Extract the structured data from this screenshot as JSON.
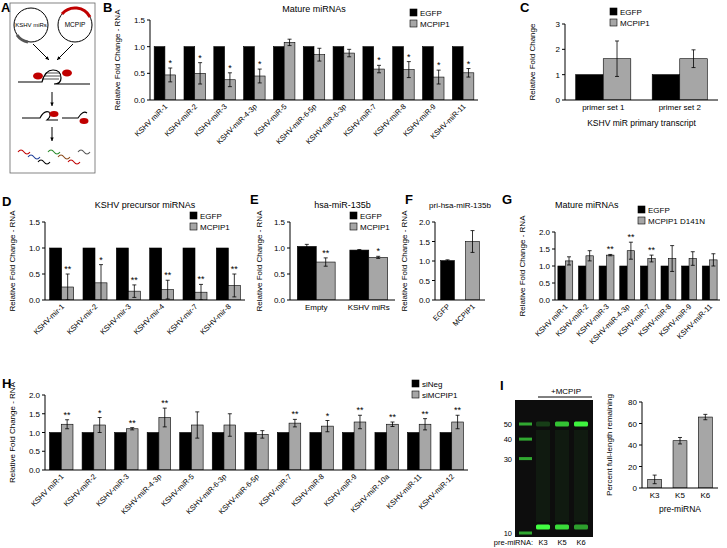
{
  "schematic": {
    "panel": "A",
    "labels": [
      "KSHV miRs",
      "MCPIP"
    ]
  },
  "chart_data": [
    {
      "panel": "B",
      "type": "bar",
      "title": "Mature miRNAs",
      "y_label": "Relative Fold Change - RNA",
      "categories": [
        "KSHV miR-1",
        "KSHV-miR-2",
        "KSHV-miR-3",
        "KSHV-miR-4-3p",
        "KSHV-miR-5",
        "KSHV-miR-6-5p",
        "KSHV-miR-6-3p",
        "KSHV-miR-7",
        "KSHV-miR-8",
        "KSHV-miR-9",
        "KSHV-miR-11"
      ],
      "series": [
        {
          "name": "EGFP",
          "color": "#000000",
          "values": [
            1,
            1,
            1,
            1,
            1,
            1,
            1,
            1,
            1,
            1,
            1
          ]
        },
        {
          "name": "MCPIP1",
          "color": "#a6a6a6",
          "values": [
            0.47,
            0.5,
            0.38,
            0.45,
            1.08,
            0.85,
            0.88,
            0.58,
            0.57,
            0.43,
            0.51
          ],
          "errors": [
            0.13,
            0.2,
            0.13,
            0.13,
            0.06,
            0.12,
            0.07,
            0.07,
            0.15,
            0.13,
            0.08
          ],
          "significance": [
            "*",
            "*",
            "*",
            "*",
            null,
            null,
            null,
            "*",
            "*",
            "*",
            "*"
          ]
        }
      ],
      "ylim": [
        0,
        1.5
      ],
      "yticks": [
        {
          "value": 0,
          "label": "0.0"
        },
        {
          "value": 0.5,
          "label": "0.5"
        },
        {
          "value": 1,
          "label": "1.0"
        },
        {
          "value": 1.5,
          "label": "1.5"
        }
      ],
      "legend": "top-right"
    },
    {
      "panel": "C",
      "type": "bar",
      "y_label": "Relative Fold Change",
      "x_label": "KSHV miR primary transcript",
      "categories": [
        "primer set 1",
        "primer set 2"
      ],
      "series": [
        {
          "name": "EGFP",
          "color": "#000000",
          "values": [
            1,
            1
          ]
        },
        {
          "name": "MCPIP1",
          "color": "#a6a6a6",
          "values": [
            1.63,
            1.63
          ],
          "errors": [
            0.7,
            0.35
          ]
        }
      ],
      "ylim": [
        0,
        3
      ],
      "yticks": [
        0,
        1,
        2,
        3
      ],
      "legend": "top-right"
    },
    {
      "panel": "D",
      "type": "bar",
      "title": "KSHV precursor miRNAs",
      "y_label": "Relative Fold Change - RNA",
      "categories": [
        "KSHV-mir-1",
        "KSHV-mir-2",
        "KSHV-mir-3",
        "KSHV-mir-4",
        "KSHV-mir-7",
        "KSHV-mir-8"
      ],
      "series": [
        {
          "name": "EGFP",
          "color": "#000000",
          "values": [
            1,
            1,
            1,
            1,
            1,
            1
          ]
        },
        {
          "name": "MCPIP1",
          "color": "#a6a6a6",
          "values": [
            0.25,
            0.33,
            0.17,
            0.2,
            0.15,
            0.28
          ],
          "errors": [
            0.25,
            0.35,
            0.12,
            0.18,
            0.15,
            0.22
          ],
          "significance": [
            "**",
            "*",
            "**",
            "**",
            "**",
            "**"
          ]
        }
      ],
      "ylim": [
        0,
        1.5
      ],
      "yticks": [
        {
          "value": 0,
          "label": "0.0"
        },
        {
          "value": 0.5,
          "label": "0.5"
        },
        {
          "value": 1,
          "label": "1.0"
        },
        {
          "value": 1.5,
          "label": "1.5"
        }
      ],
      "legend": "top-right"
    },
    {
      "panel": "E",
      "type": "bar",
      "title": "hsa-miR-135b",
      "y_label": "Relative Fold Change - RNA",
      "categories": [
        "Empty",
        "KSHV miRs"
      ],
      "series": [
        {
          "name": "EGFP",
          "color": "#000000",
          "values": [
            1.03,
            0.96
          ],
          "errors": [
            0.04,
            0.01
          ]
        },
        {
          "name": "MCPIP1",
          "color": "#a6a6a6",
          "values": [
            0.73,
            0.82
          ],
          "errors": [
            0.08,
            0.02
          ],
          "significance": [
            "**",
            "*"
          ]
        }
      ],
      "ylim": [
        0,
        1.5
      ],
      "yticks": [
        {
          "value": 0,
          "label": "0.0"
        },
        {
          "value": 0.5,
          "label": "0.5"
        },
        {
          "value": 1,
          "label": "1.0"
        },
        {
          "value": 1.5,
          "label": "1.5"
        }
      ],
      "legend": "top-right"
    },
    {
      "panel": "F",
      "type": "bar",
      "title": "pri-hsa-miR-135b",
      "y_label": "Relative Fold Change - RNA",
      "categories": [
        "EGFP",
        "MCPIP1"
      ],
      "values": [
        1.01,
        1.5
      ],
      "errors": [
        0.02,
        0.28
      ],
      "colors": [
        "#000000",
        "#a6a6a6"
      ],
      "ylim": [
        0,
        2
      ],
      "yticks": [
        {
          "value": 0,
          "label": "0.0"
        },
        {
          "value": 0.5,
          "label": "0.5"
        },
        {
          "value": 1,
          "label": "1.0"
        },
        {
          "value": 1.5,
          "label": "1.5"
        },
        {
          "value": 2,
          "label": "2.0"
        }
      ]
    },
    {
      "panel": "G",
      "type": "bar",
      "title": "Mature miRNAs",
      "y_label": "Relative Fold Change - RNA",
      "categories": [
        "KSHV miR-1",
        "KSHV-miR-2",
        "KSHV-miR-3",
        "KSHV-miR-4-3p",
        "KSHV-miR-7",
        "KSHV-miR-8",
        "KSHV-miR-9",
        "KSHV-miR-11"
      ],
      "series": [
        {
          "name": "EGFP",
          "color": "#000000",
          "values": [
            1,
            1,
            1,
            1,
            1,
            1,
            1,
            1
          ]
        },
        {
          "name": "MCPIP1 D141N",
          "color": "#a6a6a6",
          "values": [
            1.15,
            1.3,
            1.32,
            1.45,
            1.22,
            1.22,
            1.22,
            1.18
          ],
          "errors": [
            0.12,
            0.15,
            0.02,
            0.25,
            0.1,
            0.38,
            0.2,
            0.18
          ],
          "significance": [
            null,
            null,
            "**",
            "**",
            "**",
            null,
            null,
            null
          ]
        }
      ],
      "ylim": [
        0,
        2
      ],
      "yticks": [
        {
          "value": 0,
          "label": "0.0"
        },
        {
          "value": 0.5,
          "label": "0.5"
        },
        {
          "value": 1,
          "label": "1.0"
        },
        {
          "value": 1.5,
          "label": "1.5"
        },
        {
          "value": 2,
          "label": "2.0"
        }
      ],
      "legend": "top-right"
    },
    {
      "panel": "H",
      "type": "bar",
      "y_label": "Relative Fold Change - RNA",
      "categories": [
        "KSHV miR-1",
        "KSHV-miR-2",
        "KSHV-miR-3",
        "KSHV-miR-4-3p",
        "KSHV-miR-5",
        "KSHV-miR-6-3p",
        "KSHV-miR-6-5p",
        "KSHV-miR-7",
        "KSHV-miR-8",
        "KSHV-miR-9",
        "KSHV-miR-10a",
        "KSHV-miR-11",
        "KSHV-miR-12"
      ],
      "series": [
        {
          "name": "siNeg",
          "color": "#000000",
          "values": [
            1,
            1,
            1,
            1,
            1,
            1,
            1,
            1,
            1,
            1,
            1,
            1,
            1
          ]
        },
        {
          "name": "siMCPIP1",
          "color": "#a6a6a6",
          "values": [
            1.22,
            1.2,
            1.1,
            1.4,
            1.2,
            1.2,
            0.95,
            1.25,
            1.17,
            1.28,
            1.22,
            1.22,
            1.28
          ],
          "errors": [
            0.12,
            0.2,
            0.03,
            0.25,
            0.35,
            0.3,
            0.1,
            0.1,
            0.15,
            0.18,
            0.06,
            0.15,
            0.18
          ],
          "significance": [
            "**",
            "*",
            "**",
            "**",
            null,
            null,
            null,
            "**",
            "*",
            "**",
            "**",
            "**",
            "**"
          ]
        }
      ],
      "ylim": [
        0,
        2
      ],
      "yticks": [
        {
          "value": 0,
          "label": "0.0"
        },
        {
          "value": 0.5,
          "label": "0.5"
        },
        {
          "value": 1,
          "label": "1.0"
        },
        {
          "value": 1.5,
          "label": "1.5"
        },
        {
          "value": 2,
          "label": "2.0"
        }
      ],
      "legend": "top-right"
    },
    {
      "type": "bar",
      "y_label": "Percent full-length remaining",
      "x_label": "pre-miRNA",
      "categories": [
        "K3",
        "K5",
        "K6"
      ],
      "values": [
        8,
        44,
        66
      ],
      "errors": [
        4,
        3,
        2.5
      ],
      "color": "#a6a6a6",
      "ylim": [
        0,
        80
      ],
      "yticks": [
        0,
        20,
        40,
        60,
        80
      ]
    }
  ],
  "gel": {
    "panel": "I",
    "header": "+MCPIP",
    "ladder": [
      50,
      40,
      30,
      10
    ],
    "lane_title": "pre-miRNA:",
    "lanes": [
      "K3",
      "K5",
      "K6"
    ]
  }
}
